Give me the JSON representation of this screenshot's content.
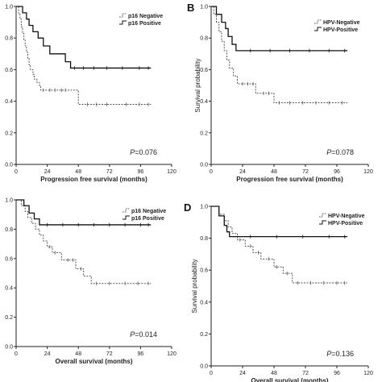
{
  "chart_data": [
    {
      "type": "line",
      "panel_label": "",
      "xlabel": "Progression free survival (months)",
      "ylabel": "",
      "x_ticks": [
        "0",
        "24",
        "48",
        "72",
        "96",
        "120"
      ],
      "y_ticks": [
        "0.0",
        "0.2",
        "0.4",
        "0.6",
        "0.8",
        "1.0"
      ],
      "xlim": [
        0,
        120
      ],
      "ylim": [
        0,
        1
      ],
      "p_prefix": "P",
      "p_value": "=0.076",
      "legend": "top-right",
      "grid": false,
      "series": [
        {
          "name": "p16 Negative",
          "style": "dashed",
          "steps": [
            [
              0,
              1.0
            ],
            [
              2,
              0.95
            ],
            [
              3,
              0.92
            ],
            [
              4,
              0.87
            ],
            [
              5,
              0.83
            ],
            [
              6,
              0.79
            ],
            [
              7,
              0.75
            ],
            [
              8,
              0.71
            ],
            [
              9,
              0.67
            ],
            [
              10,
              0.63
            ],
            [
              11,
              0.6
            ],
            [
              13,
              0.57
            ],
            [
              14,
              0.54
            ],
            [
              16,
              0.52
            ],
            [
              18,
              0.5
            ],
            [
              19,
              0.47
            ],
            [
              48,
              0.38
            ],
            [
              104,
              0.38
            ]
          ],
          "censor": [
            21,
            26,
            30,
            35,
            38,
            55,
            62,
            70,
            85,
            95,
            102
          ]
        },
        {
          "name": "p16 Positive",
          "style": "solid",
          "steps": [
            [
              0,
              1.0
            ],
            [
              5,
              0.96
            ],
            [
              8,
              0.92
            ],
            [
              10,
              0.88
            ],
            [
              13,
              0.84
            ],
            [
              17,
              0.8
            ],
            [
              21,
              0.75
            ],
            [
              26,
              0.7
            ],
            [
              38,
              0.65
            ],
            [
              42,
              0.61
            ],
            [
              104,
              0.61
            ]
          ],
          "censor": [
            45,
            52,
            60,
            70,
            82,
            95,
            102
          ]
        }
      ]
    },
    {
      "type": "line",
      "panel_label": "B",
      "xlabel": "Progression free survival (months)",
      "ylabel": "Survival probability",
      "x_ticks": [
        "0",
        "24",
        "48",
        "72",
        "96",
        "120"
      ],
      "y_ticks": [
        "0.0",
        "0.2",
        "0.4",
        "0.6",
        "0.8",
        "1.0"
      ],
      "xlim": [
        0,
        120
      ],
      "ylim": [
        0,
        1
      ],
      "p_prefix": "P",
      "p_value": "=0.078",
      "legend": "top-right",
      "grid": false,
      "series": [
        {
          "name": "HPV-Negative",
          "style": "dashed",
          "steps": [
            [
              0,
              1.0
            ],
            [
              2,
              0.95
            ],
            [
              4,
              0.9
            ],
            [
              6,
              0.84
            ],
            [
              8,
              0.78
            ],
            [
              10,
              0.72
            ],
            [
              12,
              0.66
            ],
            [
              14,
              0.61
            ],
            [
              17,
              0.56
            ],
            [
              20,
              0.51
            ],
            [
              34,
              0.45
            ],
            [
              48,
              0.39
            ],
            [
              104,
              0.39
            ]
          ],
          "censor": [
            24,
            28,
            32,
            40,
            44,
            52,
            60,
            70,
            80,
            90,
            100
          ]
        },
        {
          "name": "HPV-Positive",
          "style": "solid",
          "steps": [
            [
              0,
              1.0
            ],
            [
              4,
              0.95
            ],
            [
              8,
              0.9
            ],
            [
              11,
              0.86
            ],
            [
              13,
              0.81
            ],
            [
              16,
              0.76
            ],
            [
              19,
              0.72
            ],
            [
              104,
              0.72
            ]
          ],
          "censor": [
            30,
            45,
            60,
            75,
            90,
            102
          ]
        }
      ]
    },
    {
      "type": "line",
      "panel_label": "",
      "xlabel": "Overall survival (months)",
      "ylabel": "",
      "x_ticks": [
        "0",
        "24",
        "48",
        "72",
        "96",
        "120"
      ],
      "y_ticks": [
        "0.0",
        "0.2",
        "0.4",
        "0.6",
        "0.8",
        "1.0"
      ],
      "xlim": [
        0,
        120
      ],
      "ylim": [
        0,
        1
      ],
      "p_prefix": "P",
      "p_value": "=0.014",
      "legend": "top-right",
      "grid": false,
      "series": [
        {
          "name": "p16 Negative",
          "style": "dashed",
          "steps": [
            [
              0,
              1.0
            ],
            [
              4,
              0.96
            ],
            [
              7,
              0.92
            ],
            [
              9,
              0.88
            ],
            [
              12,
              0.84
            ],
            [
              15,
              0.8
            ],
            [
              18,
              0.76
            ],
            [
              21,
              0.72
            ],
            [
              24,
              0.68
            ],
            [
              28,
              0.64
            ],
            [
              35,
              0.59
            ],
            [
              46,
              0.53
            ],
            [
              52,
              0.48
            ],
            [
              58,
              0.43
            ],
            [
              104,
              0.43
            ]
          ],
          "censor": [
            26,
            30,
            40,
            44,
            50,
            62,
            72,
            84,
            94,
            102
          ]
        },
        {
          "name": "p16 Positive",
          "style": "solid",
          "steps": [
            [
              0,
              1.0
            ],
            [
              6,
              0.96
            ],
            [
              10,
              0.91
            ],
            [
              14,
              0.87
            ],
            [
              18,
              0.83
            ],
            [
              104,
              0.83
            ]
          ],
          "censor": [
            24,
            36,
            48,
            60,
            72,
            84,
            96,
            102
          ]
        }
      ]
    },
    {
      "type": "line",
      "panel_label": "D",
      "xlabel": "Overall survival (months)",
      "ylabel": "Survival probability",
      "x_ticks": [
        "0",
        "24",
        "48",
        "72",
        "96",
        "120"
      ],
      "y_ticks": [
        "0.0",
        "0.2",
        "0.4",
        "0.6",
        "0.8",
        "1.0"
      ],
      "xlim": [
        0,
        120
      ],
      "ylim": [
        0,
        1
      ],
      "p_prefix": "P",
      "p_value": "=0.136",
      "legend": "top-right",
      "grid": false,
      "series": [
        {
          "name": "HPV-Negative",
          "style": "dashed",
          "steps": [
            [
              0,
              1.0
            ],
            [
              6,
              0.95
            ],
            [
              10,
              0.91
            ],
            [
              13,
              0.87
            ],
            [
              16,
              0.83
            ],
            [
              20,
              0.79
            ],
            [
              26,
              0.75
            ],
            [
              32,
              0.71
            ],
            [
              38,
              0.67
            ],
            [
              48,
              0.62
            ],
            [
              55,
              0.58
            ],
            [
              62,
              0.52
            ],
            [
              104,
              0.52
            ]
          ],
          "censor": [
            22,
            30,
            36,
            44,
            50,
            58,
            66,
            76,
            86,
            96,
            102
          ]
        },
        {
          "name": "HPV-Positive",
          "style": "solid",
          "steps": [
            [
              0,
              1.0
            ],
            [
              6,
              0.94
            ],
            [
              10,
              0.88
            ],
            [
              12,
              0.84
            ],
            [
              14,
              0.81
            ],
            [
              104,
              0.81
            ]
          ],
          "censor": [
            30,
            50,
            70,
            90,
            102
          ]
        }
      ]
    }
  ]
}
